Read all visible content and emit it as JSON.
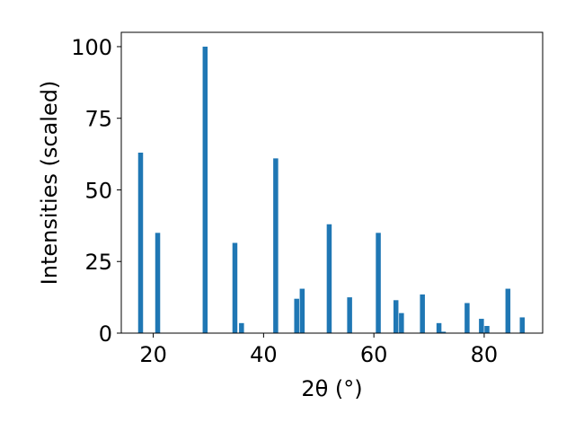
{
  "chart_data": {
    "type": "bar",
    "title": "",
    "xlabel": "2θ (°)",
    "ylabel": "Intensities (scaled)",
    "xlim": [
      14.2,
      90.6
    ],
    "ylim": [
      0,
      105
    ],
    "xticks": [
      20,
      40,
      60,
      80
    ],
    "yticks": [
      0,
      25,
      50,
      75,
      100
    ],
    "grid": false,
    "bar_color": "#1f77b4",
    "x": [
      17.7,
      20.8,
      29.4,
      34.8,
      36.0,
      42.2,
      46.0,
      47.0,
      51.9,
      55.6,
      60.8,
      64.0,
      65.0,
      68.8,
      71.8,
      72.6,
      76.9,
      79.5,
      80.5,
      84.3,
      86.9
    ],
    "values": [
      63,
      35,
      100,
      31.5,
      3.5,
      61,
      12,
      15.5,
      38,
      12.5,
      35,
      11.5,
      7,
      13.5,
      3.5,
      0.5,
      10.5,
      5,
      2.5,
      15.5,
      5.5
    ]
  }
}
